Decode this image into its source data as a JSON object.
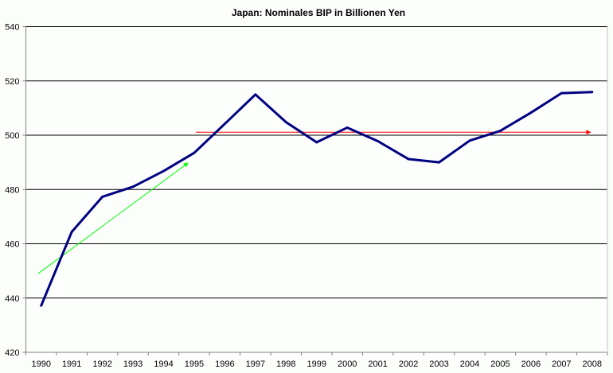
{
  "chart_data": {
    "type": "line",
    "title": "Japan: Nominales BIP in Billionen Yen",
    "xlabel": "",
    "ylabel": "",
    "ylim": [
      420,
      540
    ],
    "yticks": [
      420,
      440,
      460,
      480,
      500,
      520,
      540
    ],
    "grid": true,
    "categories": [
      "1990",
      "1991",
      "1992",
      "1993",
      "1994",
      "1995",
      "1996",
      "1997",
      "1998",
      "1999",
      "2000",
      "2001",
      "2002",
      "2003",
      "2004",
      "2005",
      "2006",
      "2007",
      "2008"
    ],
    "series": [
      {
        "name": "Nominales BIP",
        "color": "#000080",
        "values": [
          437.2,
          464.4,
          477.3,
          481.0,
          486.8,
          493.5,
          504.2,
          515.0,
          504.8,
          497.4,
          502.8,
          497.8,
          491.2,
          490.0,
          498.0,
          501.6,
          508.3,
          515.5,
          515.9
        ]
      }
    ],
    "annotations": [
      {
        "name": "growth-trend-arrow",
        "color": "#00ff00",
        "from": {
          "x": 1989.9,
          "y": 449
        },
        "to": {
          "x": 1994.8,
          "y": 489.8
        }
      },
      {
        "name": "stagnation-arrow",
        "color": "#ff0000",
        "from": {
          "x": 1995.05,
          "y": 501.1
        },
        "to": {
          "x": 2007.95,
          "y": 501.1
        }
      }
    ]
  }
}
